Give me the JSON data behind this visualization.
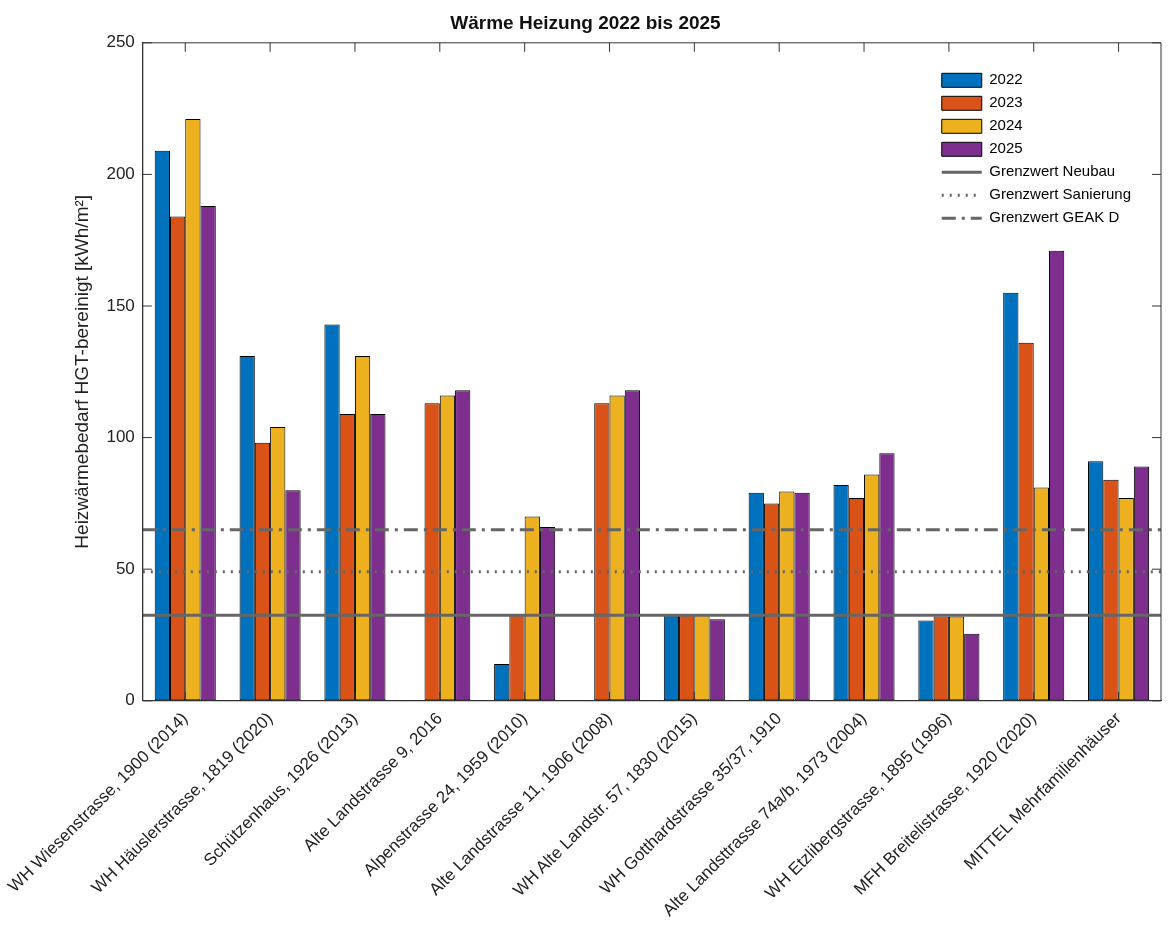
{
  "chart_data": {
    "type": "bar",
    "title": "Wärme Heizung 2022 bis 2025",
    "ylabel": "Heizwärmebedarf HGT-bereinigt [kWh/m²]",
    "categories": [
      "WH Wiesenstrasse, 1900 (2014)",
      "WH Häuslerstrasse, 1819 (2020)",
      "Schützenhaus, 1926 (2013)",
      "Alte Landstrasse 9, 2016",
      "Alpenstrasse 24, 1959 (2010)",
      "Alte Landstrasse 11, 1906 (2008)",
      "WH Alte Landstr. 57, 1830 (2015)",
      "WH Gotthardstrasse 35/37, 1910",
      "Alte Landsttrasse 74a/b, 1973 (2004)",
      "WH Etzlibergstrasse, 1895 (1996)",
      "MFH Breitelistrasse, 1920 (2020)",
      "MITTEL Mehrfamilienhäuser"
    ],
    "series": [
      {
        "name": "2022",
        "color": "#0072bd",
        "values": [
          209,
          131,
          143,
          null,
          14,
          null,
          33,
          79,
          82,
          30.5,
          155,
          91
        ]
      },
      {
        "name": "2023",
        "color": "#d95319",
        "values": [
          184,
          98,
          109,
          113,
          33,
          113,
          33,
          75,
          77,
          32,
          136,
          84
        ]
      },
      {
        "name": "2024",
        "color": "#edb120",
        "values": [
          221,
          104,
          131,
          116,
          70,
          116,
          33,
          79.5,
          86,
          32,
          81,
          77
        ]
      },
      {
        "name": "2025",
        "color": "#7e2f8e",
        "values": [
          188,
          80,
          109,
          118,
          66,
          118,
          31,
          79,
          94,
          25.5,
          171,
          89
        ]
      }
    ],
    "ylim": [
      0,
      250
    ],
    "yticks": [
      0,
      50,
      100,
      150,
      200,
      250
    ],
    "grid": false,
    "legend": "top right",
    "ref_lines": [
      {
        "axis": "y",
        "value": 32.5,
        "label": "Grenzwert Neubau",
        "color": "#666666",
        "line_style": "solid"
      },
      {
        "axis": "y",
        "value": 49,
        "label": "Grenzwert Sanierung",
        "color": "#666666",
        "line_style": "dotted"
      },
      {
        "axis": "y",
        "value": 65,
        "label": "Grenzwert GEAK D",
        "color": "#666666",
        "line_style": "dashdot"
      }
    ]
  }
}
